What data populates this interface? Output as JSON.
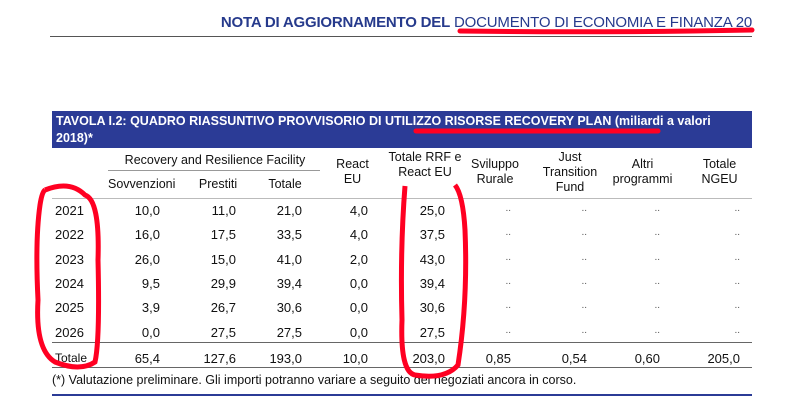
{
  "header": {
    "bold": "NOTA DI AGGIORNAMENTO DEL",
    "regular": "DOCUMENTO DI ECONOMIA E FINANZA 20",
    "year_end": "20"
  },
  "table": {
    "title": "TAVOLA I.2: QUADRO RIASSUNTIVO PROVVISORIO DI UTILIZZO RISORSE RECOVERY PLAN (miliardi a valori 2018)*",
    "group_header": "Recovery and Resilience Facility",
    "columns": [
      "Sovvenzioni",
      "Prestiti",
      "Totale",
      "React EU",
      "Totale RRF e React EU",
      "Sviluppo Rurale",
      "Just Transition Fund",
      "Altri programmi",
      "Totale NGEU"
    ],
    "rows": [
      {
        "year": "2021",
        "values": [
          "10,0",
          "11,0",
          "21,0",
          "4,0",
          "25,0",
          "..",
          "..",
          "..",
          ".."
        ]
      },
      {
        "year": "2022",
        "values": [
          "16,0",
          "17,5",
          "33,5",
          "4,0",
          "37,5",
          "..",
          "..",
          "..",
          ".."
        ]
      },
      {
        "year": "2023",
        "values": [
          "26,0",
          "15,0",
          "41,0",
          "2,0",
          "43,0",
          "..",
          "..",
          "..",
          ".."
        ]
      },
      {
        "year": "2024",
        "values": [
          "9,5",
          "29,9",
          "39,4",
          "0,0",
          "39,4",
          "..",
          "..",
          "..",
          ".."
        ]
      },
      {
        "year": "2025",
        "values": [
          "3,9",
          "26,7",
          "30,6",
          "0,0",
          "30,6",
          "..",
          "..",
          "..",
          ".."
        ]
      },
      {
        "year": "2026",
        "values": [
          "0,0",
          "27,5",
          "27,5",
          "0,0",
          "27,5",
          "..",
          "..",
          "..",
          ".."
        ]
      },
      {
        "year": "Totale",
        "values": [
          "65,4",
          "127,6",
          "193,0",
          "10,0",
          "203,0",
          "0,85",
          "0,54",
          "0,60",
          "205,0"
        ]
      }
    ],
    "footnote": "(*) Valutazione preliminare. Gli importi potranno variare a seguito dei negoziati ancora in corso."
  },
  "annotation_color": "#ff0022"
}
